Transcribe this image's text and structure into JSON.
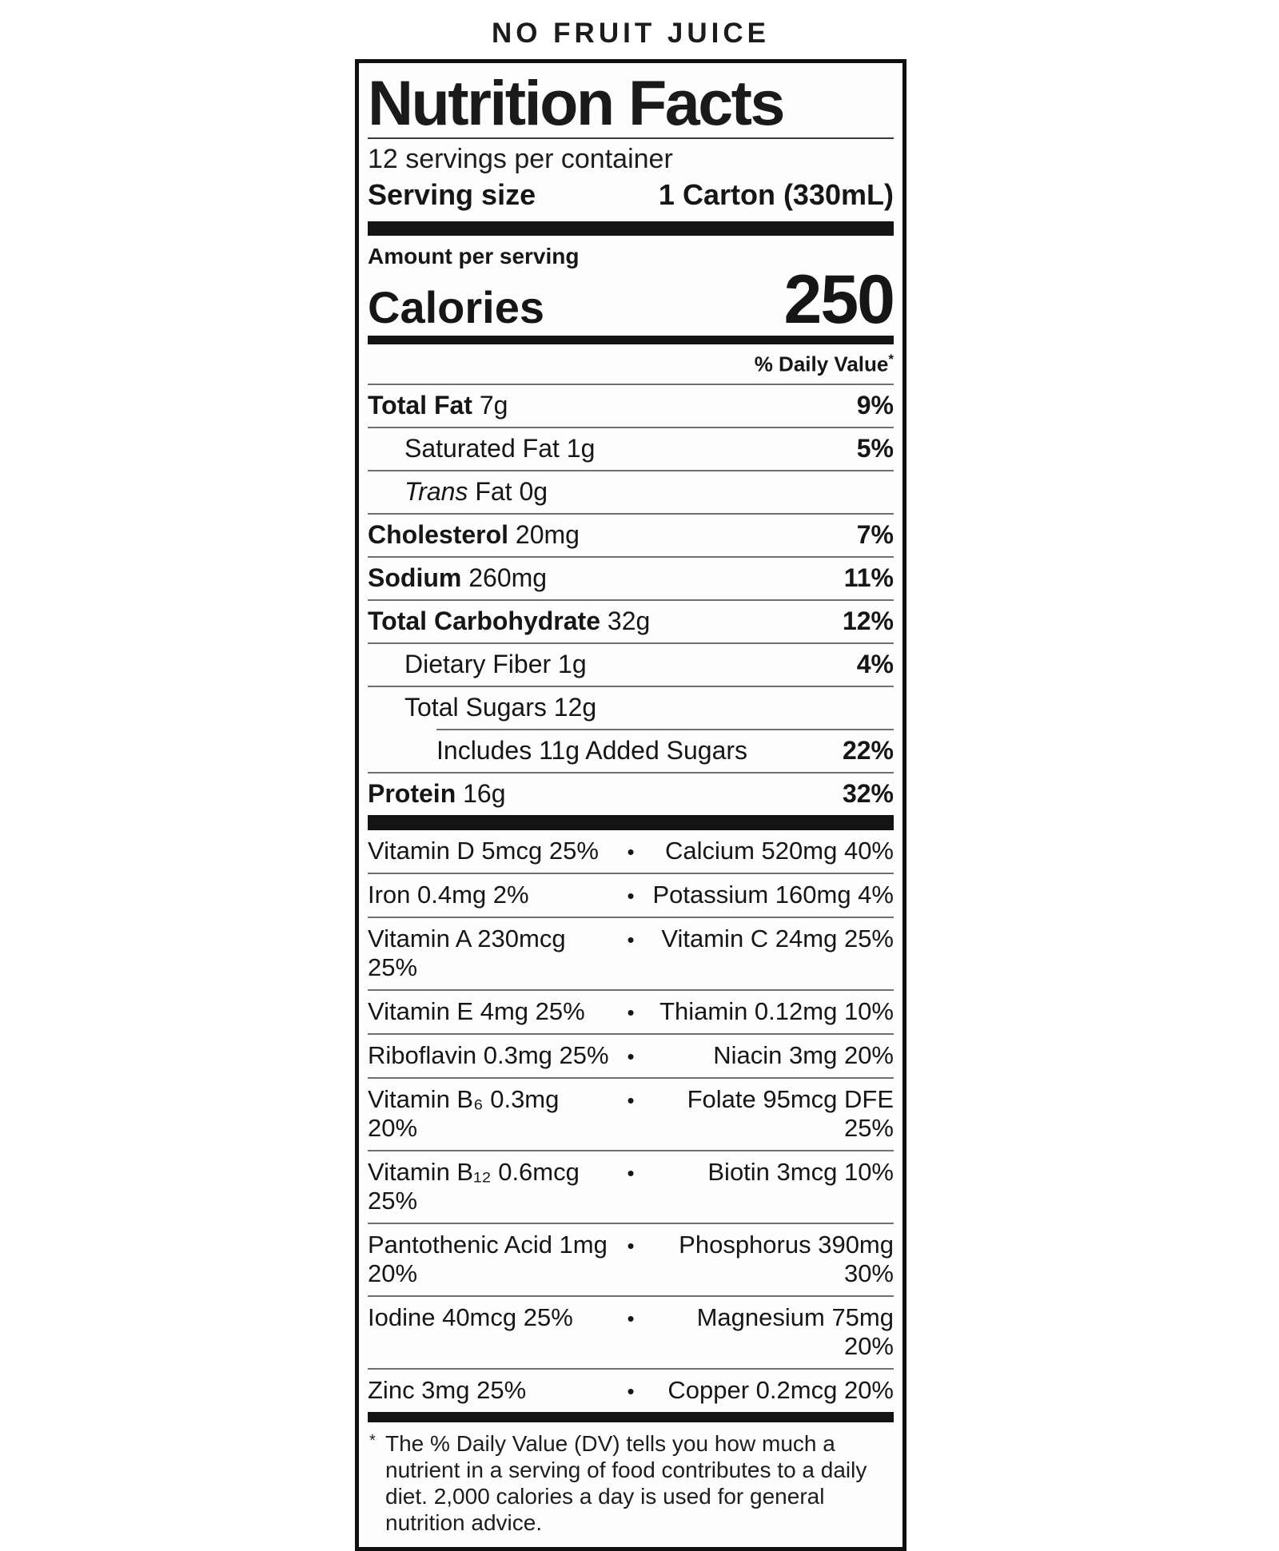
{
  "page_heading": "NO FRUIT JUICE",
  "label": {
    "title": "Nutrition Facts",
    "servings_per_container": "12 servings per container",
    "serving_size_label": "Serving size",
    "serving_size_value": "1 Carton (330mL)",
    "amount_per_serving": "Amount per serving",
    "calories_label": "Calories",
    "calories_value": "250",
    "daily_value_header": "% Daily Value",
    "daily_value_asterisk": "*",
    "bullet": "•",
    "nutrients": [
      {
        "bold": "Total Fat",
        "italic": "",
        "rest": " 7g",
        "pct": "9%"
      },
      {
        "bold": "",
        "italic": "",
        "rest": "Saturated Fat 1g",
        "pct": "5%"
      },
      {
        "bold": "",
        "italic": "Trans",
        "rest": " Fat 0g",
        "pct": ""
      },
      {
        "bold": "Cholesterol",
        "italic": "",
        "rest": " 20mg",
        "pct": "7%"
      },
      {
        "bold": "Sodium",
        "italic": "",
        "rest": " 260mg",
        "pct": "11%"
      },
      {
        "bold": "Total Carbohydrate",
        "italic": "",
        "rest": " 32g",
        "pct": "12%"
      },
      {
        "bold": "",
        "italic": "",
        "rest": "Dietary Fiber 1g",
        "pct": "4%"
      },
      {
        "bold": "",
        "italic": "",
        "rest": "Total Sugars 12g",
        "pct": ""
      },
      {
        "bold": "",
        "italic": "",
        "rest": "Includes 11g Added Sugars",
        "pct": "22%"
      },
      {
        "bold": "Protein",
        "italic": "",
        "rest": " 16g",
        "pct": "32%"
      }
    ],
    "micronutrients": [
      {
        "left": "Vitamin D 5mcg 25%",
        "right": "Calcium 520mg 40%"
      },
      {
        "left": "Iron 0.4mg 2%",
        "right": "Potassium 160mg 4%"
      },
      {
        "left": "Vitamin A 230mcg 25%",
        "right": "Vitamin C 24mg 25%"
      },
      {
        "left": "Vitamin E 4mg 25%",
        "right": "Thiamin 0.12mg 10%"
      },
      {
        "left": "Riboflavin 0.3mg 25%",
        "right": "Niacin 3mg 20%"
      },
      {
        "left": "Vitamin B₆ 0.3mg 20%",
        "right": "Folate 95mcg DFE 25%"
      },
      {
        "left": "Vitamin B₁₂ 0.6mcg 25%",
        "right": "Biotin 3mcg 10%"
      },
      {
        "left": "Pantothenic Acid 1mg 20%",
        "right": "Phosphorus 390mg 30%"
      },
      {
        "left": "Iodine 40mcg 25%",
        "right": "Magnesium 75mg 20%"
      },
      {
        "left": "Zinc 3mg 25%",
        "right": "Copper 0.2mcg 20%"
      }
    ],
    "footnote_asterisk": "*",
    "footnote_text": "The % Daily Value (DV) tells you how much a nutrient in a serving of food contributes to a daily diet. 2,000 calories a day is used for general nutrition advice."
  }
}
